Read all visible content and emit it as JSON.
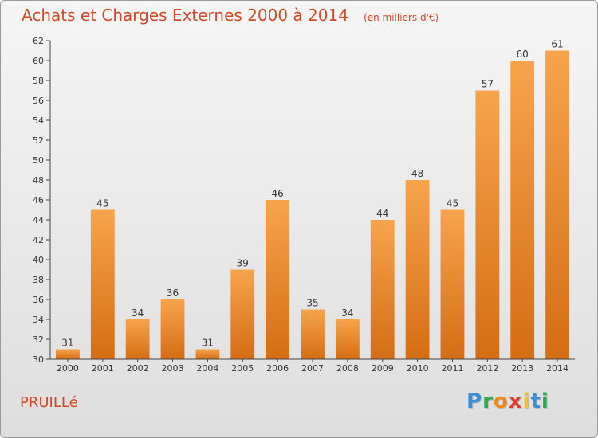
{
  "header": {
    "title": "Achats et Charges Externes 2000 à 2014",
    "subtitle": "(en milliers d'€)"
  },
  "footer": {
    "place": "PRUILLé",
    "logo": {
      "letters": [
        "P",
        "r",
        "o",
        "x",
        "i",
        "t",
        "i"
      ],
      "colors": [
        "#3a8fd6",
        "#2fa84f",
        "#f08a1c",
        "#e23b2e",
        "#f0c419",
        "#3a8fd6",
        "#2fa84f"
      ]
    }
  },
  "chart_data": {
    "type": "bar",
    "categories": [
      "2000",
      "2001",
      "2002",
      "2003",
      "2004",
      "2005",
      "2006",
      "2007",
      "2008",
      "2009",
      "2010",
      "2011",
      "2012",
      "2013",
      "2014"
    ],
    "values": [
      31,
      45,
      34,
      36,
      31,
      39,
      46,
      35,
      34,
      44,
      48,
      45,
      57,
      60,
      61
    ],
    "data_labels": [
      "31",
      "45",
      "34",
      "36",
      "31",
      "39",
      "46",
      "35",
      "34",
      "44",
      "48",
      "45",
      "57",
      "60",
      "61"
    ],
    "title": "Achats et Charges Externes 2000 à 2014",
    "subtitle": "(en milliers d'€)",
    "xlabel": "",
    "ylabel": "",
    "ylim": [
      30,
      62
    ],
    "ytick_labels": [
      "30",
      "32",
      "34",
      "36",
      "38",
      "40",
      "42",
      "44",
      "46",
      "48",
      "50",
      "52",
      "54",
      "56",
      "58",
      "60",
      "62"
    ],
    "grid": false,
    "legend": "none",
    "colors": {
      "bar_light": "#f7a44c",
      "bar_dark": "#d56d14",
      "axis": "#444444",
      "text": "#333333"
    }
  }
}
